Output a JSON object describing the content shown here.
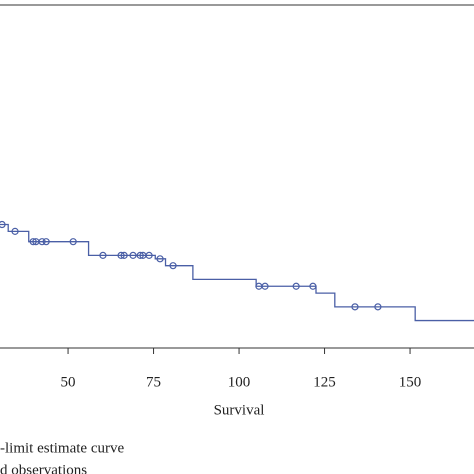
{
  "chart_data": {
    "type": "step",
    "x_label": "Survival",
    "xlim": [
      30.1,
      168.7
    ],
    "ylim": [
      0,
      1
    ],
    "xticks": [
      50,
      75,
      100,
      125,
      150
    ],
    "series": [
      {
        "name": "-limit estimate curve",
        "color": "#4a5fa6",
        "x": [
          30.1,
          32.5,
          38.5,
          56,
          75.5,
          78.5,
          86.5,
          105,
          122.5,
          128,
          151.5
        ],
        "values": [
          0.36,
          0.34,
          0.31,
          0.27,
          0.26,
          0.24,
          0.2,
          0.18,
          0.16,
          0.12,
          0.08
        ]
      },
      {
        "name": "d observations",
        "color": "#4a5fa6",
        "x": [
          30.7,
          34.5,
          39.8,
          40.6,
          42.4,
          43.6,
          51.5,
          60.2,
          65.5,
          66.4,
          69,
          71.1,
          71.9,
          73.7,
          76.9,
          80.7,
          105.8,
          107.6,
          116.7,
          121.6,
          133.9,
          140.6
        ],
        "values": [
          0.36,
          0.34,
          0.31,
          0.31,
          0.31,
          0.31,
          0.31,
          0.27,
          0.27,
          0.27,
          0.27,
          0.27,
          0.27,
          0.27,
          0.26,
          0.24,
          0.18,
          0.18,
          0.18,
          0.18,
          0.12,
          0.12
        ]
      }
    ]
  }
}
